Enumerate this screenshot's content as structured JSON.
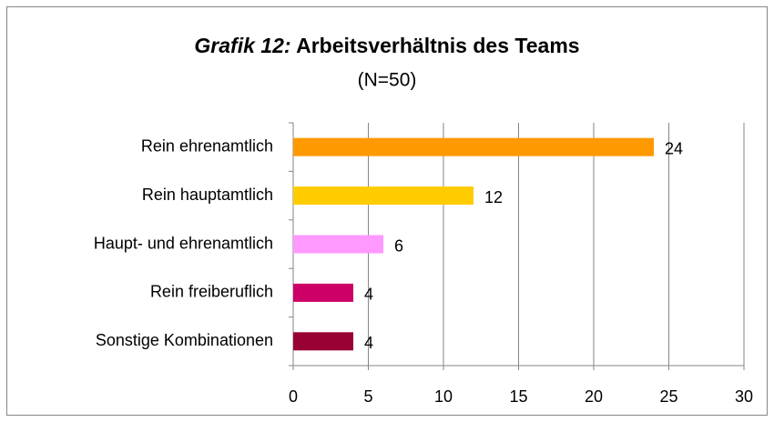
{
  "chart_data": {
    "type": "barh",
    "title_prefix": "Grafik 12:",
    "title": "Arbeitsverhältnis des Teams",
    "subtitle": "(N=50)",
    "categories": [
      "Rein ehrenamtlich",
      "Rein hauptamtlich",
      "Haupt- und ehrenamtlich",
      "Rein freiberuflich",
      "Sonstige Kombinationen"
    ],
    "values": [
      24,
      12,
      6,
      4,
      4
    ],
    "colors": [
      "#ff9900",
      "#ffcc00",
      "#ff99ff",
      "#cc0066",
      "#990033"
    ],
    "xlim": [
      0,
      30
    ],
    "xticks": [
      0,
      5,
      10,
      15,
      20,
      25,
      30
    ],
    "grid": true
  }
}
